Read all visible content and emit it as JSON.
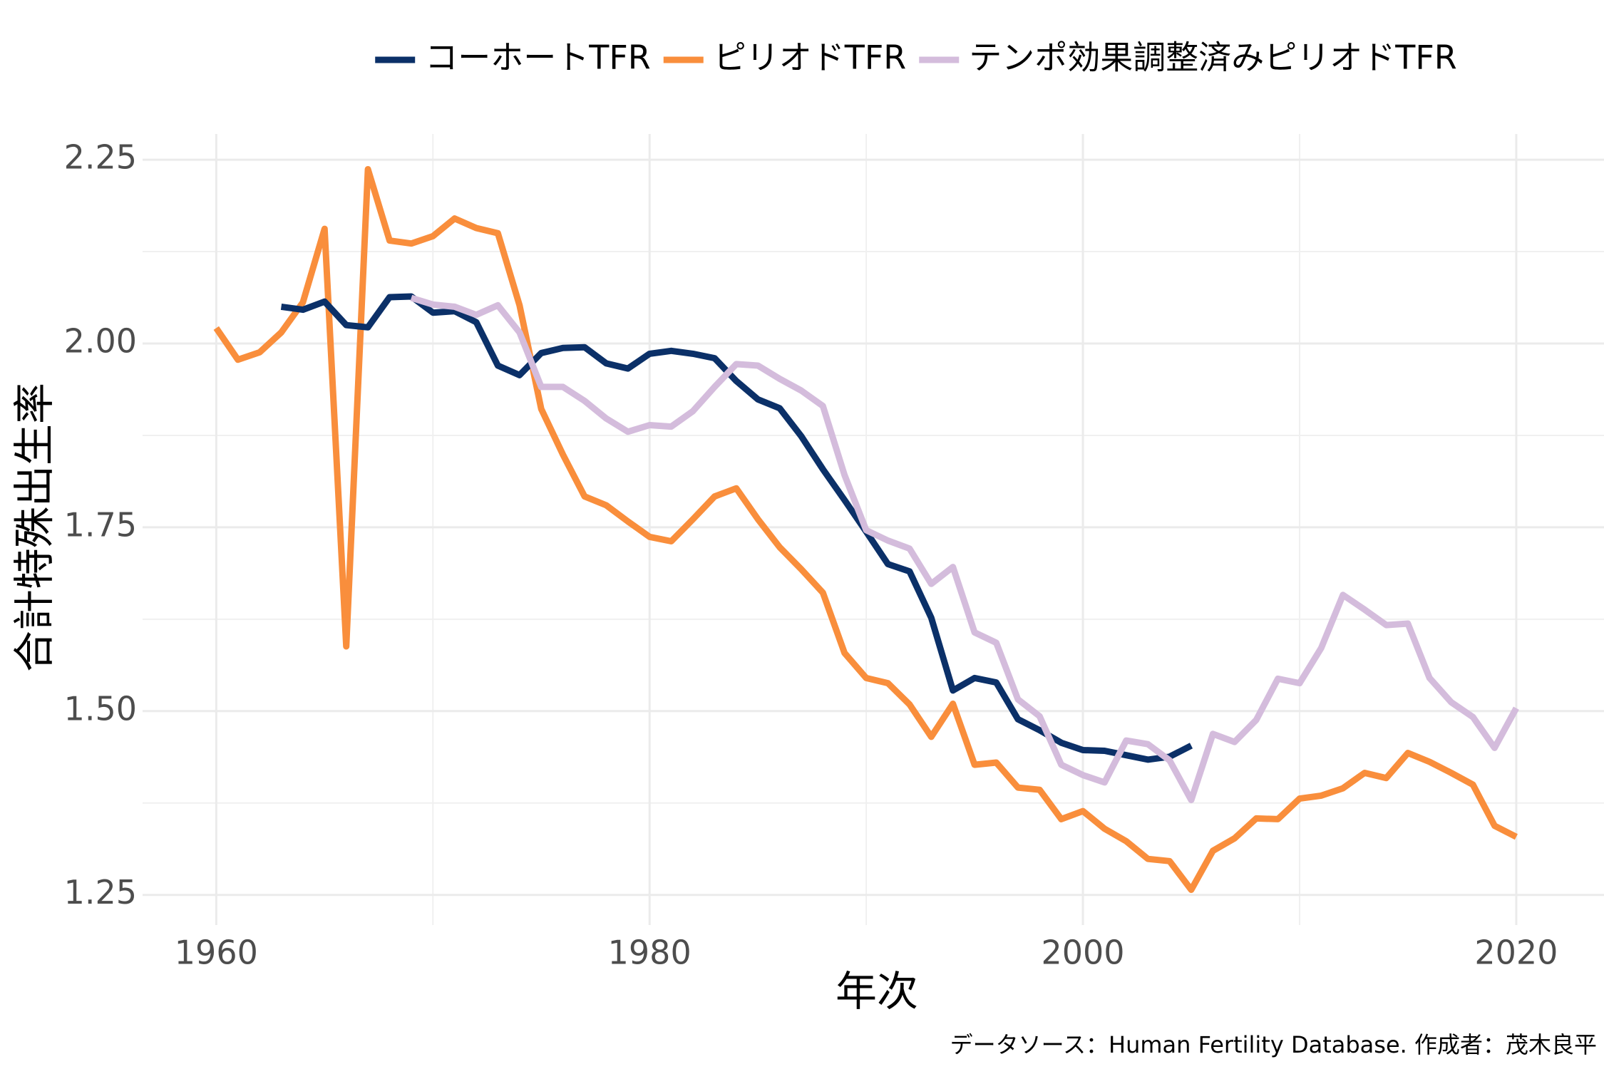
{
  "chart_data": {
    "type": "line",
    "xlabel": "年次",
    "ylabel": "合計特殊出生率",
    "caption": "データソース：Human Fertility Database. 作成者：茂木良平",
    "x": [
      1960,
      1961,
      1962,
      1963,
      1964,
      1965,
      1966,
      1967,
      1968,
      1969,
      1970,
      1971,
      1972,
      1973,
      1974,
      1975,
      1976,
      1977,
      1978,
      1979,
      1980,
      1981,
      1982,
      1983,
      1984,
      1985,
      1986,
      1987,
      1988,
      1989,
      1990,
      1991,
      1992,
      1993,
      1994,
      1995,
      1996,
      1997,
      1998,
      1999,
      2000,
      2001,
      2002,
      2003,
      2004,
      2005,
      2006,
      2007,
      2008,
      2009,
      2010,
      2011,
      2012,
      2013,
      2014,
      2015,
      2016,
      2017,
      2018,
      2019,
      2020
    ],
    "series": [
      {
        "name": "コーホートTFR",
        "color": "#0b3068",
        "values": [
          null,
          null,
          null,
          2.05,
          2.046,
          2.057,
          2.025,
          2.022,
          2.063,
          2.064,
          2.042,
          2.044,
          2.029,
          1.97,
          1.957,
          1.987,
          1.994,
          1.995,
          1.973,
          1.966,
          1.986,
          1.99,
          1.986,
          1.98,
          1.949,
          1.924,
          1.912,
          1.874,
          1.829,
          1.787,
          1.744,
          1.7,
          1.69,
          1.627,
          1.528,
          1.545,
          1.539,
          1.489,
          1.474,
          1.457,
          1.447,
          1.446,
          1.44,
          1.434,
          1.438,
          1.453,
          null,
          null,
          null,
          null,
          null,
          null,
          null,
          null,
          null,
          null,
          null,
          null,
          null,
          null,
          null
        ]
      },
      {
        "name": "ピリオドTFR",
        "color": "#f98e3c",
        "values": [
          2.021,
          1.978,
          1.988,
          2.015,
          2.056,
          2.156,
          1.588,
          2.237,
          2.14,
          2.136,
          2.146,
          2.17,
          2.157,
          2.15,
          2.052,
          1.911,
          1.849,
          1.792,
          1.78,
          1.758,
          1.737,
          1.731,
          1.761,
          1.792,
          1.803,
          1.761,
          1.723,
          1.693,
          1.661,
          1.579,
          1.545,
          1.538,
          1.509,
          1.465,
          1.51,
          1.427,
          1.43,
          1.396,
          1.393,
          1.353,
          1.364,
          1.34,
          1.323,
          1.299,
          1.296,
          1.257,
          1.31,
          1.327,
          1.354,
          1.353,
          1.381,
          1.385,
          1.395,
          1.416,
          1.409,
          1.443,
          1.431,
          1.416,
          1.4,
          1.344,
          1.329
        ]
      },
      {
        "name": "テンポ効果調整済みピリオドTFR",
        "color": "#d4bcdc",
        "values": [
          null,
          null,
          null,
          null,
          null,
          null,
          null,
          null,
          null,
          2.062,
          2.053,
          2.05,
          2.039,
          2.052,
          2.015,
          1.941,
          1.941,
          1.922,
          1.898,
          1.88,
          1.889,
          1.887,
          1.908,
          1.941,
          1.972,
          1.97,
          1.952,
          1.936,
          1.915,
          1.821,
          1.746,
          1.732,
          1.721,
          1.673,
          1.696,
          1.607,
          1.593,
          1.516,
          1.493,
          1.427,
          1.413,
          1.403,
          1.46,
          1.455,
          1.433,
          1.379,
          1.469,
          1.458,
          1.488,
          1.544,
          1.538,
          1.586,
          1.658,
          1.638,
          1.617,
          1.619,
          1.545,
          1.512,
          1.492,
          1.45,
          1.504
        ]
      }
    ],
    "xlim": [
      1956.6,
      2024.05
    ],
    "xticks": [
      1960,
      1980,
      2000,
      2020
    ],
    "ylim": [
      1.209,
      2.285
    ],
    "yticks": [
      1.25,
      {
        "value": 1.5,
        "label": "1.50"
      },
      1.75,
      {
        "value": 2.0,
        "label": "2.00"
      },
      2.25
    ],
    "grid": true,
    "legend": "top"
  }
}
